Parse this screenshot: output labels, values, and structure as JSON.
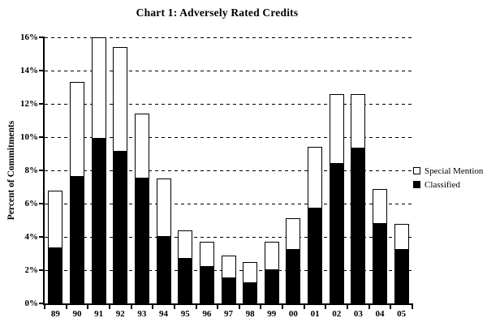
{
  "chart_data": {
    "type": "bar",
    "stacked": true,
    "title": "Chart 1: Adversely Rated Credits",
    "xlabel": "",
    "ylabel": "Percent of Commitments",
    "ylim": [
      0,
      16
    ],
    "ytick_step": 2,
    "ytick_suffix": "%",
    "grid": "horizontal-dashed",
    "legend_position": "right-outside",
    "categories": [
      "89",
      "90",
      "91",
      "92",
      "93",
      "94",
      "95",
      "96",
      "97",
      "98",
      "99",
      "00",
      "01",
      "02",
      "03",
      "04",
      "05"
    ],
    "series": [
      {
        "name": "Classified",
        "color": "#000000",
        "values": [
          3.3,
          7.6,
          9.9,
          9.1,
          7.5,
          4.0,
          2.7,
          2.2,
          1.5,
          1.2,
          2.0,
          3.2,
          5.7,
          8.4,
          9.3,
          4.8,
          3.2
        ]
      },
      {
        "name": "Special Mention",
        "color": "#ffffff",
        "border_color": "#000000",
        "values": [
          3.5,
          5.7,
          6.1,
          6.3,
          3.9,
          3.5,
          1.7,
          1.5,
          1.4,
          1.3,
          1.7,
          1.9,
          3.7,
          4.2,
          3.3,
          2.1,
          1.6
        ]
      }
    ],
    "totals": [
      6.8,
      13.3,
      16.0,
      15.4,
      11.4,
      7.5,
      4.4,
      3.7,
      2.9,
      2.5,
      3.7,
      5.1,
      9.4,
      12.6,
      12.6,
      6.9,
      4.8
    ]
  },
  "legend": {
    "items": [
      {
        "label": "Special Mention",
        "swatch": "white-outlined-square"
      },
      {
        "label": "Classified",
        "swatch": "black-filled-square"
      }
    ]
  }
}
